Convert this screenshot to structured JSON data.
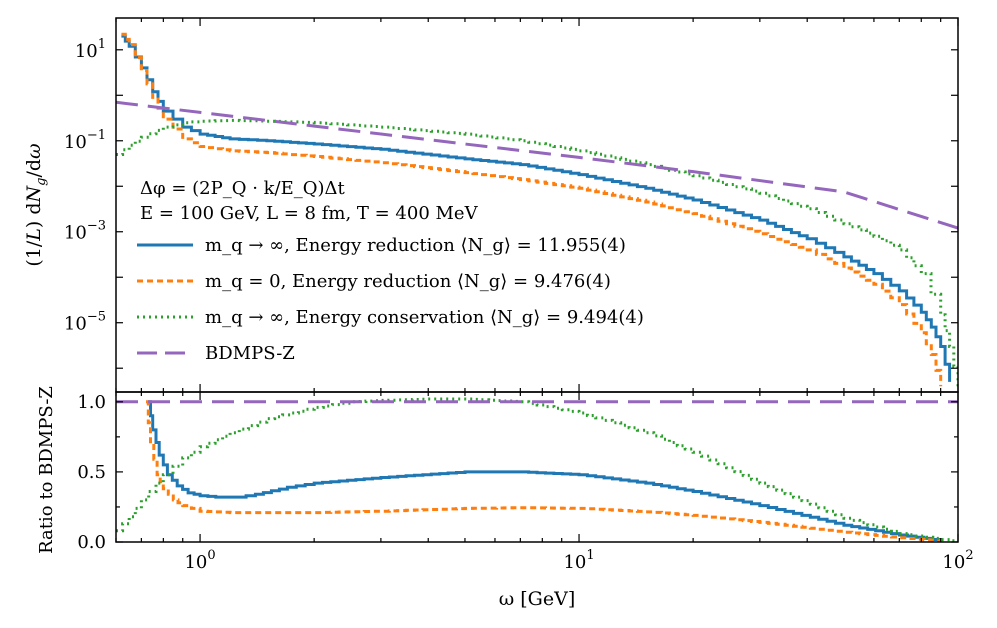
{
  "chart_data": [
    {
      "type": "line",
      "panel": "top",
      "ylabel": "(1/L) dN_g/dω",
      "xscale": "log",
      "yscale": "log",
      "xlim": [
        0.6,
        100
      ],
      "ylim": [
        3e-07,
        50
      ],
      "ytick_labels": [
        {
          "value": 10,
          "base": "10",
          "exp": "1"
        },
        {
          "value": 0.1,
          "base": "10",
          "exp": "−1"
        },
        {
          "value": 0.001,
          "base": "10",
          "exp": "−3"
        },
        {
          "value": 1e-05,
          "base": "10",
          "exp": "−5"
        }
      ],
      "annotations": {
        "line1": "Δφ = (2P_Q · k/E_Q)Δt",
        "line2": "E = 100 GeV,   L = 8 fm,   T = 400 MeV"
      },
      "legend": {
        "placement": "lower-left",
        "entries": [
          {
            "series": "mq_inf_reduction",
            "label": "m_q → ∞,   Energy reduction   ⟨N_g⟩ = 11.955(4)"
          },
          {
            "series": "mq_zero_reduction",
            "label": "m_q = 0,      Energy reduction   ⟨N_g⟩ = 9.476(4)"
          },
          {
            "series": "mq_inf_conservation",
            "label": "m_q → ∞,   Energy conservation   ⟨N_g⟩ = 9.494(4)"
          },
          {
            "series": "bdmpsz",
            "label": "BDMPS-Z"
          }
        ]
      },
      "series": [
        {
          "id": "mq_inf_reduction",
          "name": "m_q → ∞, Energy reduction",
          "color": "#1f77b4",
          "dash": "solid",
          "x": [
            0.62,
            0.65,
            0.7,
            0.75,
            0.8,
            0.9,
            1.0,
            1.2,
            1.5,
            2,
            3,
            5,
            7,
            10,
            15,
            20,
            30,
            40,
            50,
            60,
            70,
            80,
            85,
            90,
            95
          ],
          "y": [
            20,
            12,
            4,
            1.2,
            0.45,
            0.2,
            0.14,
            0.11,
            0.1,
            0.085,
            0.065,
            0.04,
            0.03,
            0.018,
            0.009,
            0.005,
            0.0018,
            0.0007,
            0.00028,
            0.00012,
            5e-05,
            1.7e-05,
            8e-06,
            3e-06,
            5e-07
          ]
        },
        {
          "id": "mq_zero_reduction",
          "name": "m_q = 0, Energy reduction",
          "color": "#ff7f0e",
          "dash": "6,4",
          "x": [
            0.62,
            0.65,
            0.7,
            0.75,
            0.8,
            0.9,
            1.0,
            1.2,
            1.5,
            2,
            3,
            5,
            7,
            10,
            15,
            20,
            30,
            40,
            50,
            60,
            70,
            80,
            85,
            90
          ],
          "y": [
            22,
            13,
            3.5,
            0.9,
            0.3,
            0.11,
            0.075,
            0.06,
            0.055,
            0.045,
            0.033,
            0.02,
            0.014,
            0.009,
            0.0045,
            0.0025,
            0.0009,
            0.0004,
            0.00016,
            7e-05,
            2.5e-05,
            6e-06,
            2e-06,
            4e-07
          ]
        },
        {
          "id": "mq_inf_conservation",
          "name": "m_q → ∞, Energy conservation",
          "color": "#2ca02c",
          "dash": "2,4",
          "x": [
            0.6,
            0.65,
            0.7,
            0.8,
            0.9,
            1.0,
            1.2,
            1.5,
            2,
            3,
            5,
            7,
            10,
            15,
            20,
            30,
            40,
            50,
            60,
            70,
            80,
            90,
            95,
            100
          ],
          "y": [
            0.05,
            0.08,
            0.12,
            0.2,
            0.25,
            0.27,
            0.28,
            0.27,
            0.25,
            0.2,
            0.14,
            0.1,
            0.06,
            0.03,
            0.017,
            0.007,
            0.0032,
            0.0015,
            0.0008,
            0.0004,
            0.00012,
            1.5e-05,
            3e-06,
            4e-07
          ]
        },
        {
          "id": "bdmpsz",
          "name": "BDMPS-Z",
          "color": "#9467bd",
          "dash": "22,10",
          "x": [
            0.6,
            1,
            2,
            5,
            10,
            20,
            50,
            100
          ],
          "y": [
            0.7,
            0.42,
            0.21,
            0.085,
            0.043,
            0.021,
            0.0075,
            0.0012
          ]
        }
      ]
    },
    {
      "type": "line",
      "panel": "bottom",
      "ylabel": "Ratio to BDMPS-Z",
      "xlabel": "ω [GeV]",
      "xscale": "log",
      "yscale": "linear",
      "xlim": [
        0.6,
        100
      ],
      "ylim": [
        0,
        1.07
      ],
      "xtick_labels": [
        {
          "value": 1,
          "base": "10",
          "exp": "0"
        },
        {
          "value": 10,
          "base": "10",
          "exp": "1"
        },
        {
          "value": 100,
          "base": "10",
          "exp": "2"
        }
      ],
      "ytick_labels": [
        {
          "value": 0,
          "text": "0.0"
        },
        {
          "value": 0.5,
          "text": "0.5"
        },
        {
          "value": 1.0,
          "text": "1.0"
        }
      ],
      "series": [
        {
          "id": "ratio_mq_inf_reduction",
          "color": "#1f77b4",
          "dash": "solid",
          "x": [
            0.73,
            0.75,
            0.78,
            0.82,
            0.87,
            0.93,
            1.0,
            1.1,
            1.25,
            1.4,
            1.7,
            2,
            3,
            5,
            7,
            10,
            15,
            20,
            30,
            50,
            70,
            90
          ],
          "y": [
            1.0,
            0.8,
            0.62,
            0.48,
            0.4,
            0.35,
            0.33,
            0.32,
            0.32,
            0.34,
            0.39,
            0.42,
            0.46,
            0.5,
            0.5,
            0.48,
            0.42,
            0.36,
            0.26,
            0.12,
            0.05,
            0.01
          ]
        },
        {
          "id": "ratio_mq_zero_reduction",
          "color": "#ff7f0e",
          "dash": "6,4",
          "x": [
            0.72,
            0.74,
            0.77,
            0.8,
            0.85,
            0.9,
            1.0,
            1.2,
            1.5,
            2,
            3,
            5,
            7,
            10,
            15,
            20,
            30,
            50,
            70,
            90
          ],
          "y": [
            1.0,
            0.7,
            0.48,
            0.38,
            0.3,
            0.26,
            0.22,
            0.21,
            0.21,
            0.21,
            0.22,
            0.24,
            0.245,
            0.24,
            0.215,
            0.19,
            0.14,
            0.07,
            0.03,
            0.005
          ]
        },
        {
          "id": "ratio_mq_inf_conservation",
          "color": "#2ca02c",
          "dash": "2,4",
          "x": [
            0.6,
            0.65,
            0.7,
            0.8,
            0.9,
            1.0,
            1.2,
            1.5,
            2,
            2.5,
            3,
            4,
            5,
            7,
            10,
            15,
            20,
            30,
            50,
            70,
            100
          ],
          "y": [
            0.08,
            0.18,
            0.3,
            0.48,
            0.6,
            0.68,
            0.78,
            0.88,
            0.96,
            1.0,
            1.01,
            1.02,
            1.02,
            1.0,
            0.92,
            0.78,
            0.64,
            0.42,
            0.17,
            0.06,
            0.0
          ]
        },
        {
          "id": "ratio_bdmpsz",
          "color": "#9467bd",
          "dash": "22,10",
          "x": [
            0.6,
            100
          ],
          "y": [
            1.0,
            1.0
          ]
        }
      ]
    }
  ]
}
